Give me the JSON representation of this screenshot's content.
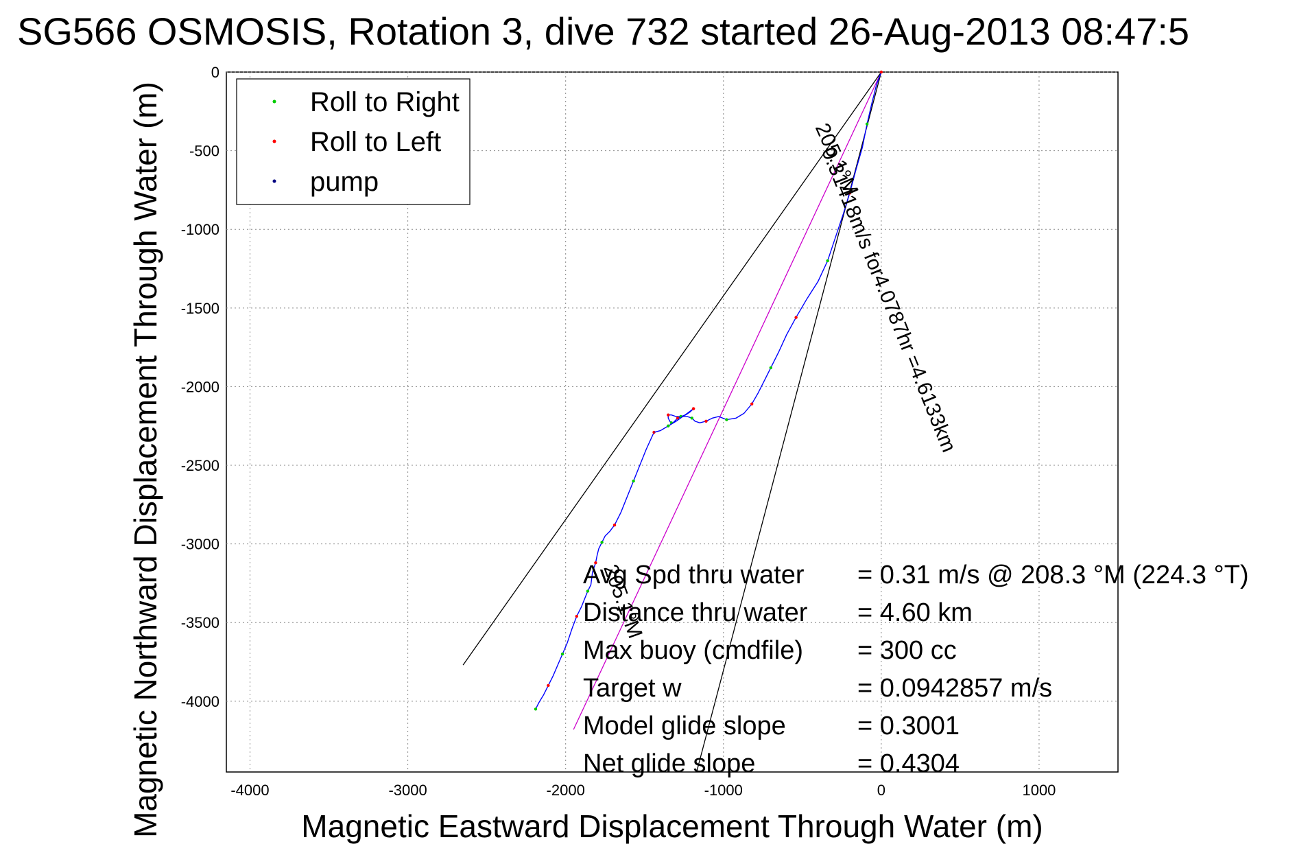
{
  "title": "SG566 OSMOSIS, Rotation 3, dive 732 started 26-Aug-2013 08:47:5",
  "chart_data": {
    "type": "line",
    "xlabel": "Magnetic Eastward Displacement Through Water (m)",
    "ylabel": "Magnetic Northward Displacement Through Water (m)",
    "xlim": [
      -4150,
      1500
    ],
    "ylim": [
      -4450,
      0
    ],
    "x_ticks": [
      -4000,
      -3000,
      -2000,
      -1000,
      0,
      1000
    ],
    "y_ticks": [
      0,
      -500,
      -1000,
      -1500,
      -2000,
      -2500,
      -3000,
      -3500,
      -4000
    ],
    "x_tick_labels": [
      "-4000",
      "-3000",
      "-2000",
      "-1000",
      "0",
      "1000"
    ],
    "y_tick_labels": [
      "0",
      "-500",
      "-1000",
      "-1500",
      "-2000",
      "-2500",
      "-3000",
      "-3500",
      "-4000"
    ],
    "grid": true,
    "legend": {
      "position": "top-left",
      "entries": [
        {
          "label": "Roll to Right",
          "color": "#00cc00"
        },
        {
          "label": "Roll to Left",
          "color": "#ff0000"
        },
        {
          "label": "pump",
          "color": "#000080"
        }
      ]
    },
    "series": [
      {
        "role": "track",
        "color": "#0000ff",
        "x": [
          0,
          -30,
          -60,
          -90,
          -120,
          -160,
          -200,
          -240,
          -290,
          -340,
          -400,
          -470,
          -540,
          -600,
          -650,
          -700,
          -740,
          -780,
          -820,
          -870,
          -920,
          -980,
          -1030,
          -1070,
          -1110,
          -1150,
          -1180,
          -1200,
          -1230,
          -1260,
          -1290,
          -1310,
          -1320,
          -1330,
          -1340,
          -1350,
          -1350,
          -1330,
          -1300,
          -1270,
          -1240,
          -1210,
          -1190
        ],
        "y": [
          0,
          -80,
          -200,
          -330,
          -480,
          -620,
          -770,
          -900,
          -1050,
          -1200,
          -1330,
          -1440,
          -1560,
          -1670,
          -1780,
          -1880,
          -1960,
          -2040,
          -2110,
          -2170,
          -2200,
          -2210,
          -2190,
          -2200,
          -2220,
          -2230,
          -2220,
          -2200,
          -2190,
          -2190,
          -2200,
          -2220,
          -2230,
          -2230,
          -2220,
          -2200,
          -2180,
          -2180,
          -2190,
          -2190,
          -2180,
          -2160,
          -2140
        ]
      },
      {
        "role": "track-lower",
        "color": "#0000ff",
        "x": [
          -1440,
          -1490,
          -1530,
          -1570,
          -1610,
          -1650,
          -1690,
          -1720,
          -1750,
          -1770,
          -1790,
          -1800,
          -1810,
          -1830,
          -1840,
          -1860,
          -1880,
          -1900,
          -1930,
          -1960,
          -1990,
          -2020,
          -2050,
          -2080,
          -2110,
          -2140,
          -2170,
          -2190
        ],
        "y": [
          -2290,
          -2400,
          -2500,
          -2600,
          -2700,
          -2800,
          -2880,
          -2920,
          -2950,
          -2990,
          -3030,
          -3070,
          -3120,
          -3180,
          -3260,
          -3300,
          -3350,
          -3400,
          -3460,
          -3540,
          -3630,
          -3700,
          -3770,
          -3840,
          -3900,
          -3960,
          -4010,
          -4050
        ]
      },
      {
        "role": "bridge",
        "color": "#0000ff",
        "x": [
          -1190,
          -1230,
          -1300,
          -1350,
          -1400,
          -1440
        ],
        "y": [
          -2140,
          -2170,
          -2220,
          -2250,
          -2280,
          -2290
        ]
      }
    ],
    "lines": [
      {
        "role": "heading",
        "color": "#cc00cc",
        "x": [
          0,
          -1950
        ],
        "y": [
          0,
          -4180
        ]
      },
      {
        "role": "envelope-left",
        "color": "#000000",
        "x": [
          0,
          -2650
        ],
        "y": [
          0,
          -3770
        ]
      },
      {
        "role": "envelope-right",
        "color": "#000000",
        "x": [
          0,
          -1170
        ],
        "y": [
          0,
          -4450
        ]
      }
    ],
    "annotations": [
      {
        "text": "205.1°M",
        "x": -420,
        "y": -350,
        "angle": 66
      },
      {
        "text": "0.31418m/s for4.0787hr =4.6133km",
        "x": -380,
        "y": -500,
        "angle": 68
      },
      {
        "text": "205.1°M",
        "x": -1760,
        "y": -3150,
        "angle": 70
      }
    ],
    "stats": [
      {
        "label": "Avg Spd thru water",
        "value": "=  0.31 m/s @ 208.3 °M (224.3 °T)"
      },
      {
        "label": "Distance thru water",
        "value": "=  4.60 km"
      },
      {
        "label": "Max buoy (cmdfile)",
        "value": "= 300 cc"
      },
      {
        "label": "Target w",
        "value": "= 0.0942857 m/s"
      },
      {
        "label": "Model glide slope",
        "value": "= 0.3001"
      },
      {
        "label": "Net glide slope",
        "value": "= 0.4304"
      }
    ]
  }
}
